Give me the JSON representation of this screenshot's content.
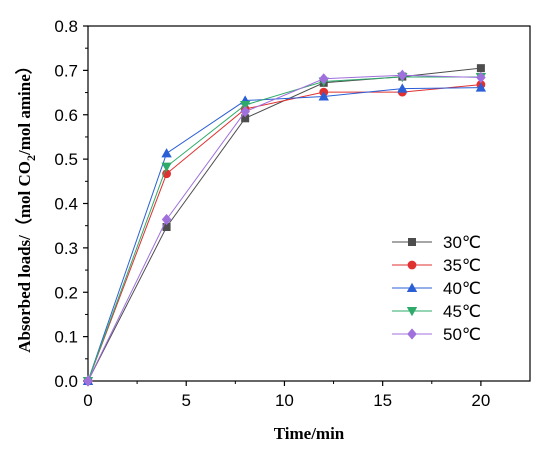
{
  "chart_data": {
    "type": "line",
    "xlabel": "Time/min",
    "ylabel_prefix": "Absorbed loads/（mol CO",
    "ylabel_sub": "2",
    "ylabel_suffix": "/mol amine）",
    "xlim": [
      0,
      22.5
    ],
    "ylim": [
      0,
      0.8
    ],
    "xticks": [
      0,
      5,
      10,
      15,
      20
    ],
    "yticks": [
      0.0,
      0.1,
      0.2,
      0.3,
      0.4,
      0.5,
      0.6,
      0.7,
      0.8
    ],
    "xtick_labels": [
      "0",
      "5",
      "10",
      "15",
      "20"
    ],
    "ytick_labels": [
      "0.0",
      "0.1",
      "0.2",
      "0.3",
      "0.4",
      "0.5",
      "0.6",
      "0.7",
      "0.8"
    ],
    "grid": false,
    "legend_position": "bottom-right",
    "x": [
      0,
      4,
      8,
      12,
      16,
      20
    ],
    "series": [
      {
        "name": "30℃",
        "marker": "square",
        "color": "#4d4d4d",
        "values": [
          0.0,
          0.347,
          0.592,
          0.672,
          0.686,
          0.705
        ]
      },
      {
        "name": "35℃",
        "marker": "circle",
        "color": "#e03030",
        "values": [
          0.0,
          0.467,
          0.613,
          0.651,
          0.651,
          0.668
        ]
      },
      {
        "name": "40℃",
        "marker": "triangle-up",
        "color": "#2a5fd6",
        "values": [
          0.0,
          0.513,
          0.632,
          0.641,
          0.659,
          0.661
        ]
      },
      {
        "name": "45℃",
        "marker": "triangle-down",
        "color": "#2eab6a",
        "values": [
          0.0,
          0.483,
          0.622,
          0.675,
          0.685,
          0.685
        ]
      },
      {
        "name": "50℃",
        "marker": "diamond",
        "color": "#a070dd",
        "values": [
          0.0,
          0.364,
          0.607,
          0.681,
          0.689,
          0.684
        ]
      }
    ]
  }
}
